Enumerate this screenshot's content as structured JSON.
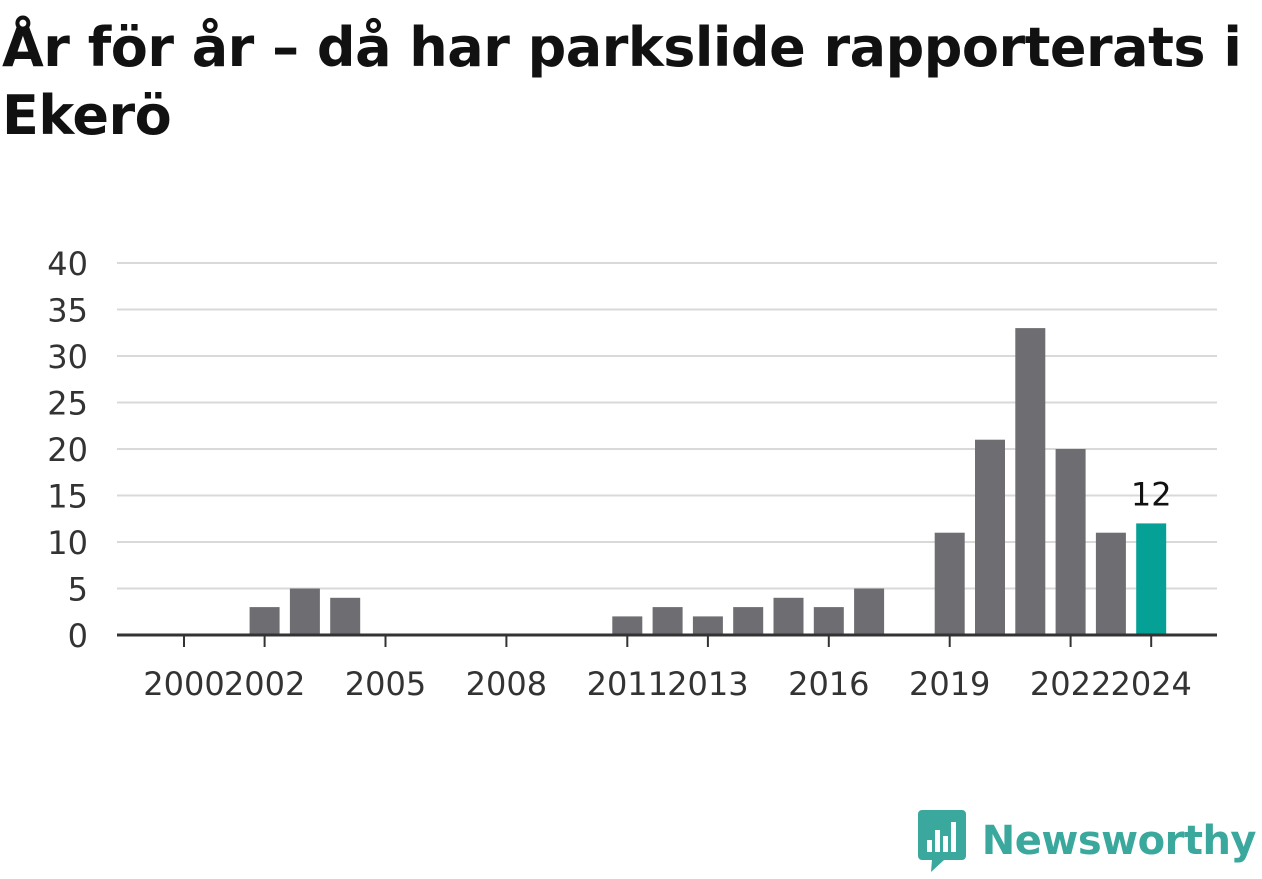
{
  "title": "År för år – då har parkslide rapporterats i Ekerö",
  "brand": {
    "name": "Newsworthy",
    "icon": "bar-chart-speech-bubble-icon",
    "color": "#3aa89d"
  },
  "chart_data": {
    "type": "bar",
    "title": "År för år – då har parkslide rapporterats i Ekerö",
    "xlabel": "",
    "ylabel": "",
    "ylim": [
      0,
      40
    ],
    "yticks": [
      0,
      5,
      10,
      15,
      20,
      25,
      30,
      35,
      40
    ],
    "grid": true,
    "categories": [
      2000,
      2001,
      2002,
      2003,
      2004,
      2005,
      2006,
      2007,
      2008,
      2009,
      2010,
      2011,
      2012,
      2013,
      2014,
      2015,
      2016,
      2017,
      2018,
      2019,
      2020,
      2021,
      2022,
      2023,
      2024
    ],
    "values": [
      0,
      0,
      3,
      5,
      4,
      0,
      0,
      0,
      0,
      0,
      0,
      2,
      3,
      2,
      3,
      4,
      3,
      5,
      0,
      11,
      21,
      33,
      20,
      11,
      12
    ],
    "xtick_labels": [
      "2000",
      "2002",
      "2005",
      "2008",
      "2011",
      "2013",
      "2016",
      "2019",
      "2022",
      "2024"
    ],
    "highlight": {
      "category": 2024,
      "label": "12"
    },
    "colors": {
      "bar": "#6e6d72",
      "highlight": "#05a196",
      "grid": "#d9d9d9",
      "axis": "#333333",
      "tick_text": "#333333"
    }
  }
}
